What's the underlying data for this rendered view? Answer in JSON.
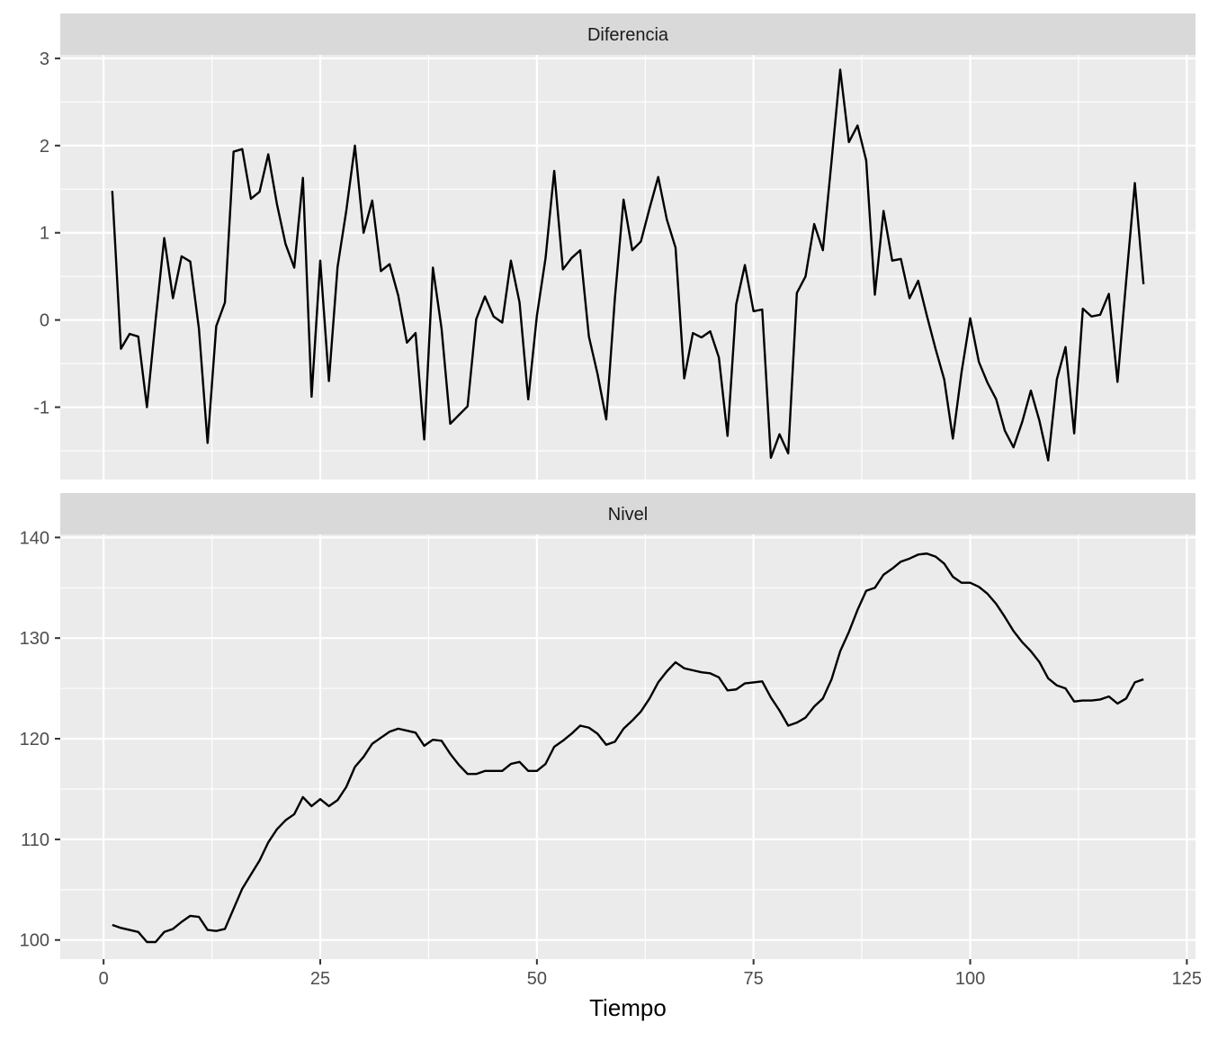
{
  "chart_data": {
    "type": "line",
    "xlabel": "Tiempo",
    "ylabel": "",
    "x_ticks": [
      0,
      25,
      50,
      75,
      100,
      125
    ],
    "xlim": [
      -5,
      126
    ],
    "grid": true,
    "legend": "none",
    "colors": {
      "panel_bg": "#EBEBEB",
      "strip_bg": "#D9D9D9",
      "grid": "#FFFFFF",
      "line": "#000000",
      "tick_text": "#4D4D4D"
    },
    "panels": [
      {
        "strip_label": "Diferencia",
        "ylim": [
          -1.83,
          3.04
        ],
        "y_ticks": [
          3,
          2,
          1,
          0,
          -1
        ],
        "y_tick_labels": [
          "3",
          "2",
          "1",
          "0",
          "-1"
        ],
        "x": [
          1,
          2,
          3,
          4,
          5,
          6,
          7,
          8,
          9,
          10,
          11,
          12,
          13,
          14,
          15,
          16,
          17,
          18,
          19,
          20,
          21,
          22,
          23,
          24,
          25,
          26,
          27,
          28,
          29,
          30,
          31,
          32,
          33,
          34,
          35,
          36,
          37,
          38,
          39,
          40,
          41,
          42,
          43,
          44,
          45,
          46,
          47,
          48,
          49,
          50,
          51,
          52,
          53,
          54,
          55,
          56,
          57,
          58,
          59,
          60,
          61,
          62,
          63,
          64,
          65,
          66,
          67,
          68,
          69,
          70,
          71,
          72,
          73,
          74,
          75,
          76,
          77,
          78,
          79,
          80,
          81,
          82,
          83,
          84,
          85,
          86,
          87,
          88,
          89,
          90,
          91,
          92,
          93,
          94,
          95,
          96,
          97,
          98,
          99,
          100,
          101,
          102,
          103,
          104,
          105,
          106,
          107,
          108,
          109,
          110,
          111,
          112,
          113,
          114,
          115,
          116,
          117,
          118,
          119,
          120
        ],
        "values": [
          1.48,
          -0.33,
          -0.16,
          -0.19,
          -1.0,
          0.0,
          0.94,
          0.25,
          0.73,
          0.67,
          -0.1,
          -1.41,
          -0.07,
          0.2,
          1.93,
          1.96,
          1.39,
          1.47,
          1.9,
          1.33,
          0.87,
          0.6,
          1.63,
          -0.88,
          0.68,
          -0.7,
          0.61,
          1.25,
          2.0,
          1.0,
          1.37,
          0.56,
          0.64,
          0.28,
          -0.26,
          -0.15,
          -1.37,
          0.6,
          -0.1,
          -1.19,
          -1.09,
          -0.99,
          0.01,
          0.27,
          0.04,
          -0.03,
          0.68,
          0.2,
          -0.91,
          0.05,
          0.71,
          1.71,
          0.58,
          0.71,
          0.8,
          -0.19,
          -0.62,
          -1.14,
          0.25,
          1.38,
          0.8,
          0.9,
          1.28,
          1.64,
          1.15,
          0.83,
          -0.67,
          -0.15,
          -0.2,
          -0.13,
          -0.43,
          -1.33,
          0.18,
          0.63,
          0.1,
          0.12,
          -1.58,
          -1.31,
          -1.53,
          0.31,
          0.5,
          1.1,
          0.8,
          1.82,
          2.87,
          2.04,
          2.23,
          1.83,
          0.29,
          1.25,
          0.68,
          0.7,
          0.25,
          0.45,
          0.05,
          -0.33,
          -0.68,
          -1.36,
          -0.6,
          0.02,
          -0.48,
          -0.72,
          -0.91,
          -1.27,
          -1.46,
          -1.17,
          -0.81,
          -1.16,
          -1.61,
          -0.68,
          -0.31,
          -1.3,
          0.13,
          0.04,
          0.06,
          0.3,
          -0.71,
          0.45,
          1.57,
          0.41
        ]
      },
      {
        "strip_label": "Nivel",
        "ylim": [
          98.1,
          140.3
        ],
        "y_ticks": [
          140,
          130,
          120,
          110,
          100
        ],
        "y_tick_labels": [
          "140",
          "130",
          "120",
          "110",
          "100"
        ],
        "x": [
          1,
          2,
          3,
          4,
          5,
          6,
          7,
          8,
          9,
          10,
          11,
          12,
          13,
          14,
          15,
          16,
          17,
          18,
          19,
          20,
          21,
          22,
          23,
          24,
          25,
          26,
          27,
          28,
          29,
          30,
          31,
          32,
          33,
          34,
          35,
          36,
          37,
          38,
          39,
          40,
          41,
          42,
          43,
          44,
          45,
          46,
          47,
          48,
          49,
          50,
          51,
          52,
          53,
          54,
          55,
          56,
          57,
          58,
          59,
          60,
          61,
          62,
          63,
          64,
          65,
          66,
          67,
          68,
          69,
          70,
          71,
          72,
          73,
          74,
          75,
          76,
          77,
          78,
          79,
          80,
          81,
          82,
          83,
          84,
          85,
          86,
          87,
          88,
          89,
          90,
          91,
          92,
          93,
          94,
          95,
          96,
          97,
          98,
          99,
          100,
          101,
          102,
          103,
          104,
          105,
          106,
          107,
          108,
          109,
          110,
          111,
          112,
          113,
          114,
          115,
          116,
          117,
          118,
          119,
          120
        ],
        "values": [
          101.5,
          101.2,
          101.0,
          100.8,
          99.8,
          99.8,
          100.8,
          101.1,
          101.8,
          102.4,
          102.3,
          101.0,
          100.9,
          101.1,
          103.1,
          105.1,
          106.5,
          107.9,
          109.7,
          111.0,
          111.9,
          112.5,
          114.2,
          113.3,
          114.0,
          113.3,
          113.9,
          115.2,
          117.2,
          118.2,
          119.5,
          120.1,
          120.7,
          121.0,
          120.8,
          120.6,
          119.3,
          119.9,
          119.8,
          118.5,
          117.4,
          116.5,
          116.5,
          116.8,
          116.8,
          116.8,
          117.5,
          117.7,
          116.8,
          116.8,
          117.5,
          119.2,
          119.8,
          120.5,
          121.3,
          121.1,
          120.5,
          119.4,
          119.7,
          121.0,
          121.8,
          122.7,
          124.0,
          125.6,
          126.7,
          127.6,
          127.0,
          126.8,
          126.6,
          126.5,
          126.1,
          124.8,
          124.9,
          125.5,
          125.6,
          125.7,
          124.1,
          122.8,
          121.3,
          121.6,
          122.1,
          123.2,
          124.0,
          125.9,
          128.7,
          130.6,
          132.8,
          134.7,
          135.0,
          136.3,
          136.9,
          137.6,
          137.9,
          138.3,
          138.4,
          138.1,
          137.4,
          136.1,
          135.5,
          135.5,
          135.1,
          134.4,
          133.4,
          132.1,
          130.7,
          129.6,
          128.7,
          127.6,
          126.0,
          125.3,
          125.0,
          123.7,
          123.8,
          123.8,
          123.9,
          124.2,
          123.5,
          124.0,
          125.6,
          125.9
        ]
      }
    ]
  }
}
